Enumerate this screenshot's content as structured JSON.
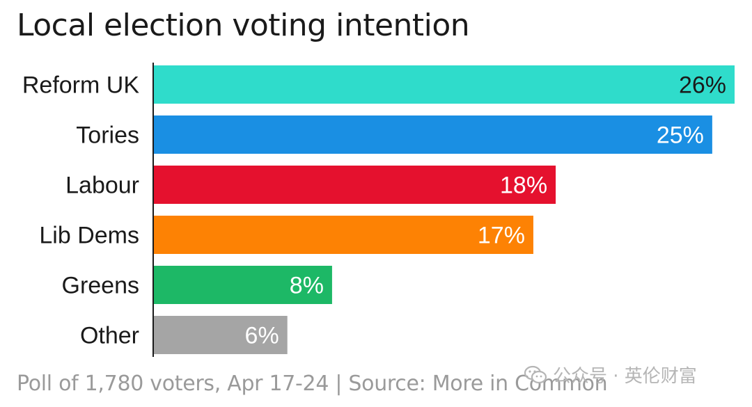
{
  "chart_data": {
    "type": "bar",
    "orientation": "horizontal",
    "title": "Local election voting intention",
    "categories": [
      "Reform UK",
      "Tories",
      "Labour",
      "Lib Dems",
      "Greens",
      "Other"
    ],
    "values": [
      26,
      25,
      18,
      17,
      8,
      6
    ],
    "value_labels": [
      "26%",
      "25%",
      "18%",
      "17%",
      "8%",
      "6%"
    ],
    "colors": [
      "#2fdccb",
      "#1a8fe3",
      "#e5112e",
      "#fd8204",
      "#1db866",
      "#a5a5a5"
    ],
    "label_colors": [
      "#1a1a1a",
      "#ffffff",
      "#ffffff",
      "#ffffff",
      "#ffffff",
      "#ffffff"
    ],
    "xlim": [
      0,
      26
    ],
    "xlabel": "",
    "ylabel": "",
    "grid": false,
    "legend": "none"
  },
  "footer": "Poll of 1,780 voters, Apr 17-24 | Source: More in Common",
  "watermark": {
    "text": "公众号 · 英伦财富",
    "icon": "wechat-icon"
  }
}
